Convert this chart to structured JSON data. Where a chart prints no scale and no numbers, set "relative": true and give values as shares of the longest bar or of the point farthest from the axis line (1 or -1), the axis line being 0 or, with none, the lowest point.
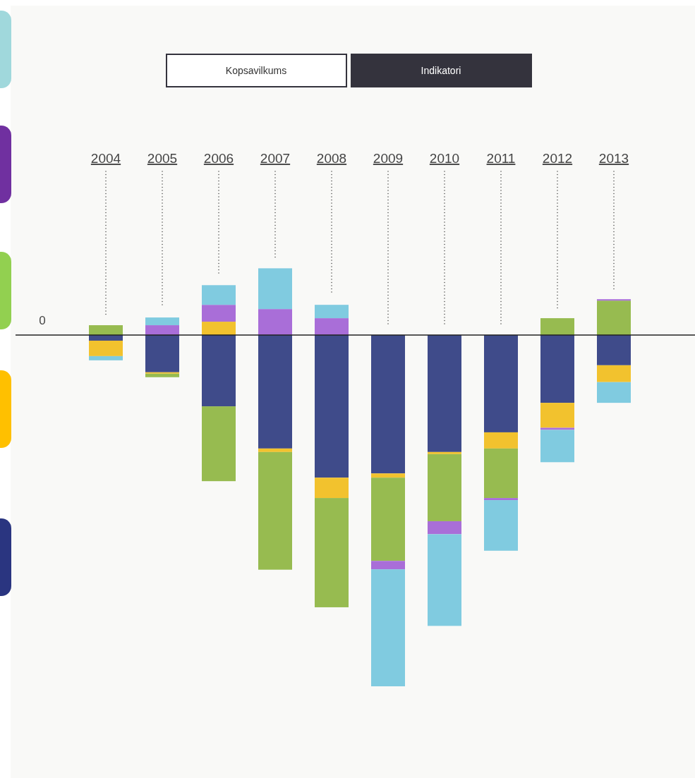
{
  "chart_data": {
    "type": "bar",
    "stacked": true,
    "relative": true,
    "categories": [
      "2004",
      "2005",
      "2006",
      "2007",
      "2008",
      "2009",
      "2010",
      "2011",
      "2012",
      "2013"
    ],
    "series": [
      {
        "color": "#3f4b8a",
        "values": [
          -0.016,
          -0.106,
          -0.203,
          -0.323,
          -0.406,
          -0.394,
          -0.333,
          -0.277,
          -0.193,
          -0.086
        ]
      },
      {
        "color": "#f2c22e",
        "values": [
          -0.044,
          -0.004,
          0.038,
          -0.01,
          -0.058,
          -0.012,
          -0.006,
          -0.046,
          -0.071,
          -0.048
        ]
      },
      {
        "color": "#97bb50",
        "values": [
          0.028,
          -0.01,
          -0.213,
          -0.335,
          -0.311,
          -0.237,
          -0.191,
          -0.141,
          0.048,
          0.098
        ]
      },
      {
        "color": "#a96ed8",
        "values": [
          0,
          0.028,
          0.048,
          0.074,
          0.048,
          -0.024,
          -0.037,
          -0.006,
          -0.006,
          0.004
        ]
      },
      {
        "color": "#80cbe0",
        "values": [
          -0.012,
          0.022,
          0.056,
          0.116,
          0.038,
          -0.333,
          -0.261,
          -0.144,
          -0.092,
          -0.059
        ]
      }
    ],
    "ref_lines": [
      {
        "axis": "y",
        "value": 0,
        "label": "0"
      }
    ],
    "annotations": [
      "Kopsavilkums",
      "Indikatori"
    ]
  }
}
